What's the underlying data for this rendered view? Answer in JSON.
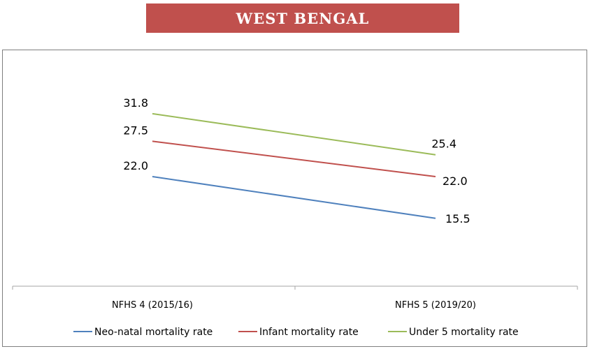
{
  "chart_data": {
    "type": "line",
    "title": "WEST BENGAL",
    "categories": [
      "NFHS 4 (2015/16)",
      "NFHS 5 (2019/20)"
    ],
    "series": [
      {
        "name": "Neo-natal mortality rate",
        "values": [
          22.0,
          15.5
        ],
        "labels": [
          "22.0",
          "15.5"
        ],
        "color": "#4f81bd"
      },
      {
        "name": "Infant mortality rate",
        "values": [
          27.5,
          22.0
        ],
        "labels": [
          "27.5",
          "22.0"
        ],
        "color": "#c0504d"
      },
      {
        "name": "Under 5 mortality rate",
        "values": [
          31.8,
          25.4
        ],
        "labels": [
          "31.8",
          "25.4"
        ],
        "color": "#9bbb59"
      }
    ],
    "legend_position": "bottom",
    "grid": false
  }
}
